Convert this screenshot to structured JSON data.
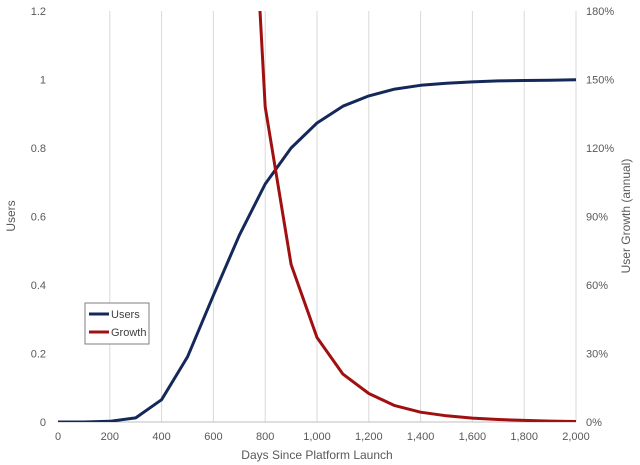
{
  "chart_data": {
    "type": "line",
    "xlabel": "Days Since Platform Launch",
    "ylabel": "Users",
    "y2label": "User Growth (annual)",
    "xlim": [
      0,
      2000
    ],
    "ylim": [
      0,
      1.2
    ],
    "y2lim": [
      0,
      1.8
    ],
    "x_ticks": [
      0,
      200,
      400,
      600,
      800,
      1000,
      1200,
      1400,
      1600,
      1800,
      2000
    ],
    "x_tick_labels": [
      "0",
      "200",
      "400",
      "600",
      "800",
      "1,000",
      "1,200",
      "1,400",
      "1,600",
      "1,800",
      "2,000"
    ],
    "y_ticks": [
      0,
      0.2,
      0.4,
      0.6,
      0.8,
      1,
      1.2
    ],
    "y_tick_labels": [
      "0",
      "0.2",
      "0.4",
      "0.6",
      "0.8",
      "1",
      "1.2"
    ],
    "y2_ticks": [
      0,
      0.3,
      0.6,
      0.9,
      1.2,
      1.5,
      1.8
    ],
    "y2_tick_labels": [
      "0%",
      "30%",
      "60%",
      "90%",
      "120%",
      "150%",
      "180%"
    ],
    "grid": "vertical",
    "legend": "lower-left",
    "series": [
      {
        "name": "Users",
        "axis": "left",
        "color": "#14285a",
        "x": [
          0,
          100,
          200,
          300,
          400,
          500,
          600,
          700,
          800,
          900,
          1000,
          1100,
          1200,
          1300,
          1400,
          1500,
          1600,
          1700,
          1800,
          1900,
          2000
        ],
        "y": [
          0,
          0,
          0.002,
          0.012,
          0.065,
          0.19,
          0.37,
          0.545,
          0.695,
          0.8,
          0.873,
          0.922,
          0.952,
          0.972,
          0.983,
          0.989,
          0.993,
          0.996,
          0.997,
          0.998,
          0.999
        ]
      },
      {
        "name": "Growth",
        "axis": "right",
        "color": "#a01010",
        "x": [
          780,
          800,
          900,
          1000,
          1100,
          1200,
          1300,
          1400,
          1500,
          1600,
          1700,
          1800,
          1900,
          2000
        ],
        "y": [
          1.8,
          1.38,
          0.69,
          0.37,
          0.21,
          0.125,
          0.072,
          0.043,
          0.027,
          0.017,
          0.011,
          0.007,
          0.004,
          0.002
        ]
      }
    ]
  }
}
